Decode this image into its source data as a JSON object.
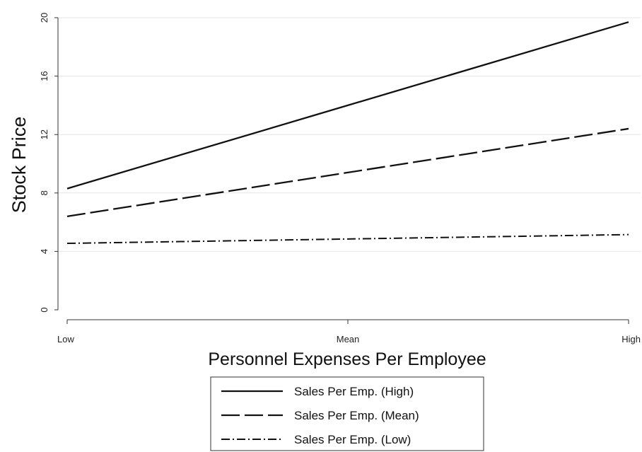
{
  "chart_data": {
    "type": "line",
    "categories": [
      "Low",
      "Mean",
      "High"
    ],
    "xlabel": "Personnel Expenses Per Employee",
    "ylabel": "Stock Price",
    "ylim": [
      0,
      20
    ],
    "yticks": [
      0,
      4,
      8,
      12,
      16,
      20
    ],
    "grid": true,
    "legend_position": "bottom",
    "series": [
      {
        "name": "Sales Per Emp. (High)",
        "values": [
          8.3,
          14.0,
          19.7
        ],
        "style": "solid"
      },
      {
        "name": "Sales Per Emp. (Mean)",
        "values": [
          6.4,
          9.4,
          12.4
        ],
        "style": "dashed"
      },
      {
        "name": "Sales Per Emp. (Low)",
        "values": [
          4.55,
          4.85,
          5.15
        ],
        "style": "dashdot"
      }
    ]
  }
}
